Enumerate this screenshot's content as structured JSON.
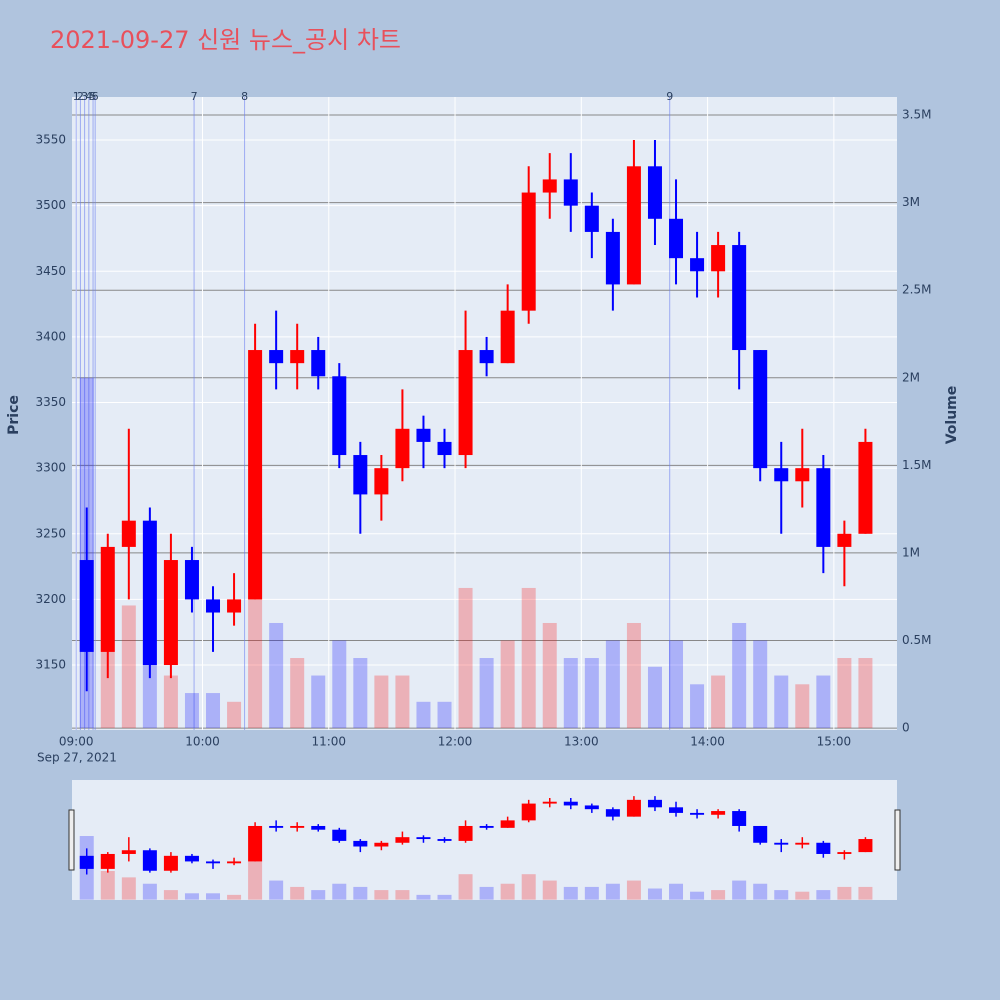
{
  "chart_data": {
    "type": "candlestick",
    "title": "2021-09-27 신원 뉴스_공시 차트",
    "y_label": "Price",
    "y2_label": "Volume",
    "date_label": "Sep 27, 2021",
    "increasing_color": "#ff0000",
    "decreasing_color": "#0000ff",
    "x": [
      "09:00",
      "09:10",
      "09:20",
      "09:30",
      "09:40",
      "09:50",
      "10:00",
      "10:10",
      "10:20",
      "10:30",
      "10:40",
      "10:50",
      "11:00",
      "11:10",
      "11:20",
      "11:30",
      "11:40",
      "11:50",
      "12:00",
      "12:10",
      "12:20",
      "12:30",
      "12:40",
      "12:50",
      "13:00",
      "13:10",
      "13:20",
      "13:30",
      "13:40",
      "13:50",
      "14:00",
      "14:10",
      "14:20",
      "14:30",
      "14:40",
      "14:50",
      "15:00",
      "15:10"
    ],
    "open": [
      3230,
      3160,
      3240,
      3260,
      3150,
      3230,
      3200,
      3190,
      3200,
      3390,
      3380,
      3390,
      3370,
      3310,
      3280,
      3300,
      3330,
      3320,
      3310,
      3390,
      3380,
      3420,
      3510,
      3520,
      3500,
      3480,
      3440,
      3530,
      3490,
      3460,
      3450,
      3470,
      3390,
      3300,
      3290,
      3300,
      3240,
      3250
    ],
    "high": [
      3270,
      3250,
      3330,
      3270,
      3250,
      3240,
      3210,
      3220,
      3410,
      3420,
      3410,
      3400,
      3380,
      3320,
      3310,
      3360,
      3340,
      3330,
      3420,
      3400,
      3440,
      3530,
      3540,
      3540,
      3510,
      3490,
      3550,
      3550,
      3520,
      3480,
      3480,
      3480,
      3390,
      3320,
      3330,
      3310,
      3260,
      3330
    ],
    "low": [
      3130,
      3140,
      3200,
      3140,
      3140,
      3190,
      3160,
      3180,
      3200,
      3360,
      3360,
      3360,
      3300,
      3250,
      3260,
      3290,
      3300,
      3300,
      3300,
      3370,
      3380,
      3410,
      3490,
      3480,
      3460,
      3420,
      3440,
      3470,
      3440,
      3430,
      3430,
      3360,
      3290,
      3250,
      3270,
      3220,
      3210,
      3250
    ],
    "close": [
      3160,
      3240,
      3260,
      3150,
      3230,
      3200,
      3190,
      3200,
      3390,
      3380,
      3390,
      3370,
      3310,
      3280,
      3300,
      3330,
      3320,
      3310,
      3390,
      3380,
      3420,
      3510,
      3520,
      3500,
      3480,
      3440,
      3530,
      3490,
      3460,
      3450,
      3470,
      3390,
      3300,
      3290,
      3300,
      3240,
      3250,
      3320
    ],
    "volume": [
      2000000,
      900000,
      700000,
      500000,
      300000,
      200000,
      200000,
      150000,
      1200000,
      600000,
      400000,
      300000,
      500000,
      400000,
      300000,
      300000,
      150000,
      150000,
      800000,
      400000,
      500000,
      800000,
      600000,
      400000,
      400000,
      500000,
      600000,
      350000,
      500000,
      250000,
      300000,
      600000,
      500000,
      300000,
      250000,
      300000,
      400000,
      400000
    ],
    "xlim": [
      "08:58",
      "15:30"
    ],
    "xticks": [
      "09:00",
      "10:00",
      "11:00",
      "12:00",
      "13:00",
      "14:00",
      "15:00"
    ],
    "ylim": [
      3100.5,
      3582.8
    ],
    "yticks": [
      3150,
      3200,
      3250,
      3300,
      3350,
      3400,
      3450,
      3500,
      3550
    ],
    "y2lim": [
      -11000,
      3603000
    ],
    "y2ticks": [
      0,
      {
        "value": 500000,
        "label": "0.5M"
      },
      {
        "value": 1000000,
        "label": "1M"
      },
      {
        "value": 1500000,
        "label": "1.5M"
      },
      {
        "value": 2000000,
        "label": "2M"
      },
      {
        "value": 2500000,
        "label": "2.5M"
      },
      {
        "value": 3000000,
        "label": "3M"
      },
      {
        "value": 3500000,
        "label": "3.5M"
      }
    ],
    "annotations": [
      {
        "label": "1",
        "x": "09:00"
      },
      {
        "label": "2",
        "x": "09:02"
      },
      {
        "label": "3",
        "x": "09:04"
      },
      {
        "label": "4",
        "x": "09:06"
      },
      {
        "label": "5",
        "x": "09:08"
      },
      {
        "label": "6",
        "x": "09:09"
      },
      {
        "label": "7",
        "x": "09:56"
      },
      {
        "label": "8",
        "x": "10:20"
      },
      {
        "label": "9",
        "x": "13:42"
      }
    ]
  }
}
